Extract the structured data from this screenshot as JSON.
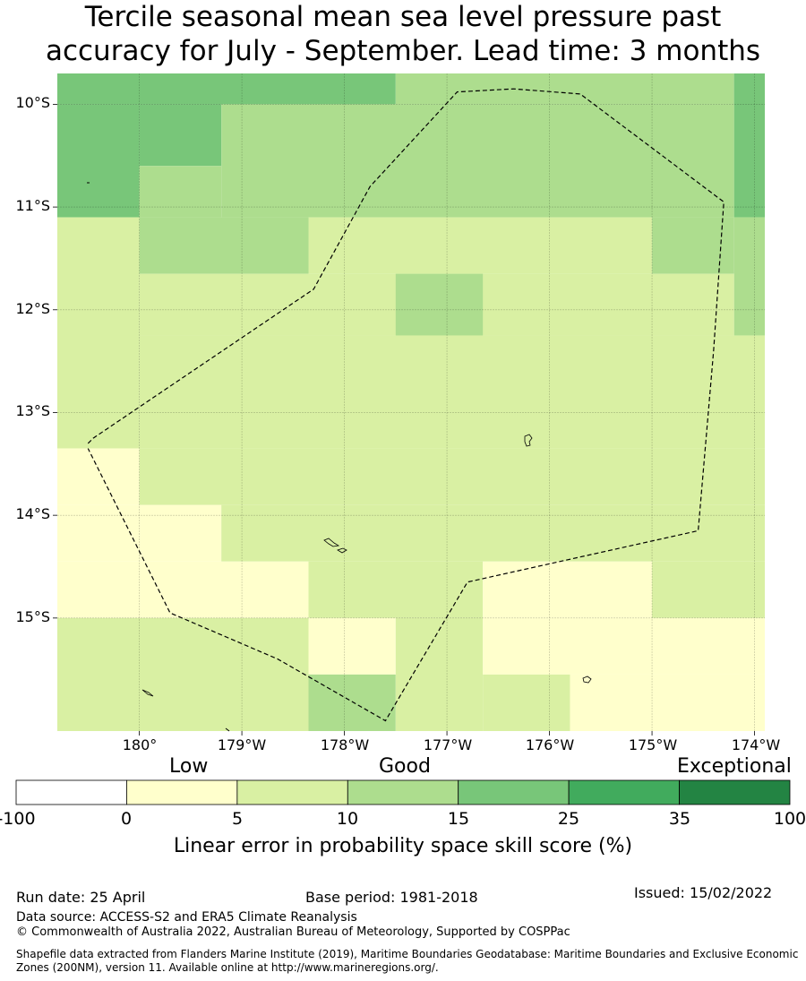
{
  "title": {
    "line1": "Tercile seasonal mean sea level pressure past",
    "line2": "accuracy for July - September. Lead time: 3 months"
  },
  "map": {
    "lat_labels": [
      "10°S",
      "11°S",
      "12°S",
      "13°S",
      "14°S",
      "15°S"
    ],
    "lon_labels": [
      "180°",
      "179°W",
      "178°W",
      "177°W",
      "176°W",
      "175°W",
      "174°W"
    ],
    "lat_range": [
      -16.1,
      -9.7
    ],
    "lon_range_east": [
      179.2,
      186.1
    ],
    "skill_grid_note": "skill category per cell: 0=0-5, 1=5-10, 2=10-15, 3=15-25",
    "cells": [
      {
        "lon": [
          179.2,
          182.5
        ],
        "lat": [
          -10.0,
          -9.7
        ],
        "cat": 3
      },
      {
        "lon": [
          182.5,
          185.8
        ],
        "lat": [
          -10.0,
          -9.7
        ],
        "cat": 2
      },
      {
        "lon": [
          185.8,
          186.1
        ],
        "lat": [
          -11.1,
          -9.7
        ],
        "cat": 3
      },
      {
        "lon": [
          179.2,
          180.0
        ],
        "lat": [
          -11.1,
          -10.0
        ],
        "cat": 3
      },
      {
        "lon": [
          180.0,
          180.8
        ],
        "lat": [
          -10.6,
          -10.0
        ],
        "cat": 3
      },
      {
        "lon": [
          180.8,
          185.8
        ],
        "lat": [
          -11.1,
          -10.0
        ],
        "cat": 2
      },
      {
        "lon": [
          180.0,
          180.8
        ],
        "lat": [
          -11.1,
          -10.6
        ],
        "cat": 2
      },
      {
        "lon": [
          179.2,
          180.0
        ],
        "lat": [
          -13.35,
          -11.1
        ],
        "cat": 1
      },
      {
        "lon": [
          180.0,
          181.65
        ],
        "lat": [
          -11.65,
          -11.1
        ],
        "cat": 2
      },
      {
        "lon": [
          181.65,
          185.0
        ],
        "lat": [
          -11.65,
          -11.1
        ],
        "cat": 1
      },
      {
        "lon": [
          185.0,
          185.8
        ],
        "lat": [
          -11.65,
          -11.1
        ],
        "cat": 2
      },
      {
        "lon": [
          185.8,
          186.1
        ],
        "lat": [
          -12.25,
          -11.1
        ],
        "cat": 2
      },
      {
        "lon": [
          180.0,
          185.8
        ],
        "lat": [
          -12.25,
          -11.65
        ],
        "cat": 1
      },
      {
        "lon": [
          182.5,
          183.35
        ],
        "lat": [
          -12.25,
          -11.65
        ],
        "cat": 2
      },
      {
        "lon": [
          180.0,
          186.1
        ],
        "lat": [
          -13.35,
          -12.25
        ],
        "cat": 1
      },
      {
        "lon": [
          179.2,
          180.0
        ],
        "lat": [
          -13.9,
          -13.35
        ],
        "cat": 0
      },
      {
        "lon": [
          180.0,
          186.1
        ],
        "lat": [
          -13.9,
          -13.35
        ],
        "cat": 1
      },
      {
        "lon": [
          179.2,
          180.8
        ],
        "lat": [
          -14.45,
          -13.9
        ],
        "cat": 0
      },
      {
        "lon": [
          180.8,
          186.1
        ],
        "lat": [
          -14.45,
          -13.9
        ],
        "cat": 1
      },
      {
        "lon": [
          179.2,
          181.65
        ],
        "lat": [
          -15.0,
          -14.45
        ],
        "cat": 0
      },
      {
        "lon": [
          181.65,
          183.35
        ],
        "lat": [
          -15.0,
          -14.45
        ],
        "cat": 1
      },
      {
        "lon": [
          183.35,
          185.0
        ],
        "lat": [
          -15.0,
          -14.45
        ],
        "cat": 0
      },
      {
        "lon": [
          185.0,
          186.1
        ],
        "lat": [
          -15.0,
          -14.45
        ],
        "cat": 1
      },
      {
        "lon": [
          179.2,
          181.65
        ],
        "lat": [
          -16.1,
          -15.0
        ],
        "cat": 1
      },
      {
        "lon": [
          181.65,
          182.5
        ],
        "lat": [
          -15.55,
          -15.0
        ],
        "cat": 0
      },
      {
        "lon": [
          181.65,
          182.5
        ],
        "lat": [
          -16.1,
          -15.55
        ],
        "cat": 2
      },
      {
        "lon": [
          182.5,
          183.35
        ],
        "lat": [
          -16.1,
          -15.0
        ],
        "cat": 1
      },
      {
        "lon": [
          183.35,
          186.1
        ],
        "lat": [
          -15.55,
          -15.0
        ],
        "cat": 0
      },
      {
        "lon": [
          183.35,
          184.2
        ],
        "lat": [
          -16.1,
          -15.55
        ],
        "cat": 1
      },
      {
        "lon": [
          184.2,
          186.1
        ],
        "lat": [
          -16.1,
          -15.55
        ],
        "cat": 0
      }
    ],
    "eez_boundary_lonlat": [
      [
        179.5,
        -13.3
      ],
      [
        179.55,
        -13.25
      ],
      [
        181.7,
        -11.8
      ],
      [
        182.25,
        -10.8
      ],
      [
        183.1,
        -9.88
      ],
      [
        183.65,
        -9.85
      ],
      [
        184.3,
        -9.9
      ],
      [
        185.7,
        -10.95
      ],
      [
        185.6,
        -12.4
      ],
      [
        185.45,
        -14.15
      ],
      [
        183.2,
        -14.65
      ],
      [
        182.4,
        -16.0
      ],
      [
        181.35,
        -15.4
      ],
      [
        180.3,
        -14.95
      ],
      [
        179.5,
        -13.35
      ]
    ]
  },
  "colorbar": {
    "categories": [
      "Low",
      "Good",
      "Exceptional"
    ],
    "ticks": [
      "-100",
      "0",
      "5",
      "10",
      "15",
      "25",
      "35",
      "100"
    ],
    "colors": [
      "#ffffff",
      "#ffffcc",
      "#d9f0a3",
      "#addd8e",
      "#78c679",
      "#41ab5d",
      "#238443"
    ],
    "title": "Linear error in probability space skill score (%)"
  },
  "footer": {
    "run_date": "Run date: 25 April",
    "base_period": "Base period: 1981-2018",
    "issued": "Issued: 15/02/2022",
    "data_source": "Data source: ACCESS-S2 and ERA5 Climate Reanalysis",
    "copyright": "© Commonwealth of Australia 2022, Australian Bureau of Meteorology, Supported by COSPPac",
    "shapefile": "Shapefile data extracted from Flanders Marine Institute (2019), Maritime Boundaries Geodatabase: Maritime Boundaries and Exclusive Economic Zones (200NM), version 11. Available online at http://www.marineregions.org/."
  }
}
